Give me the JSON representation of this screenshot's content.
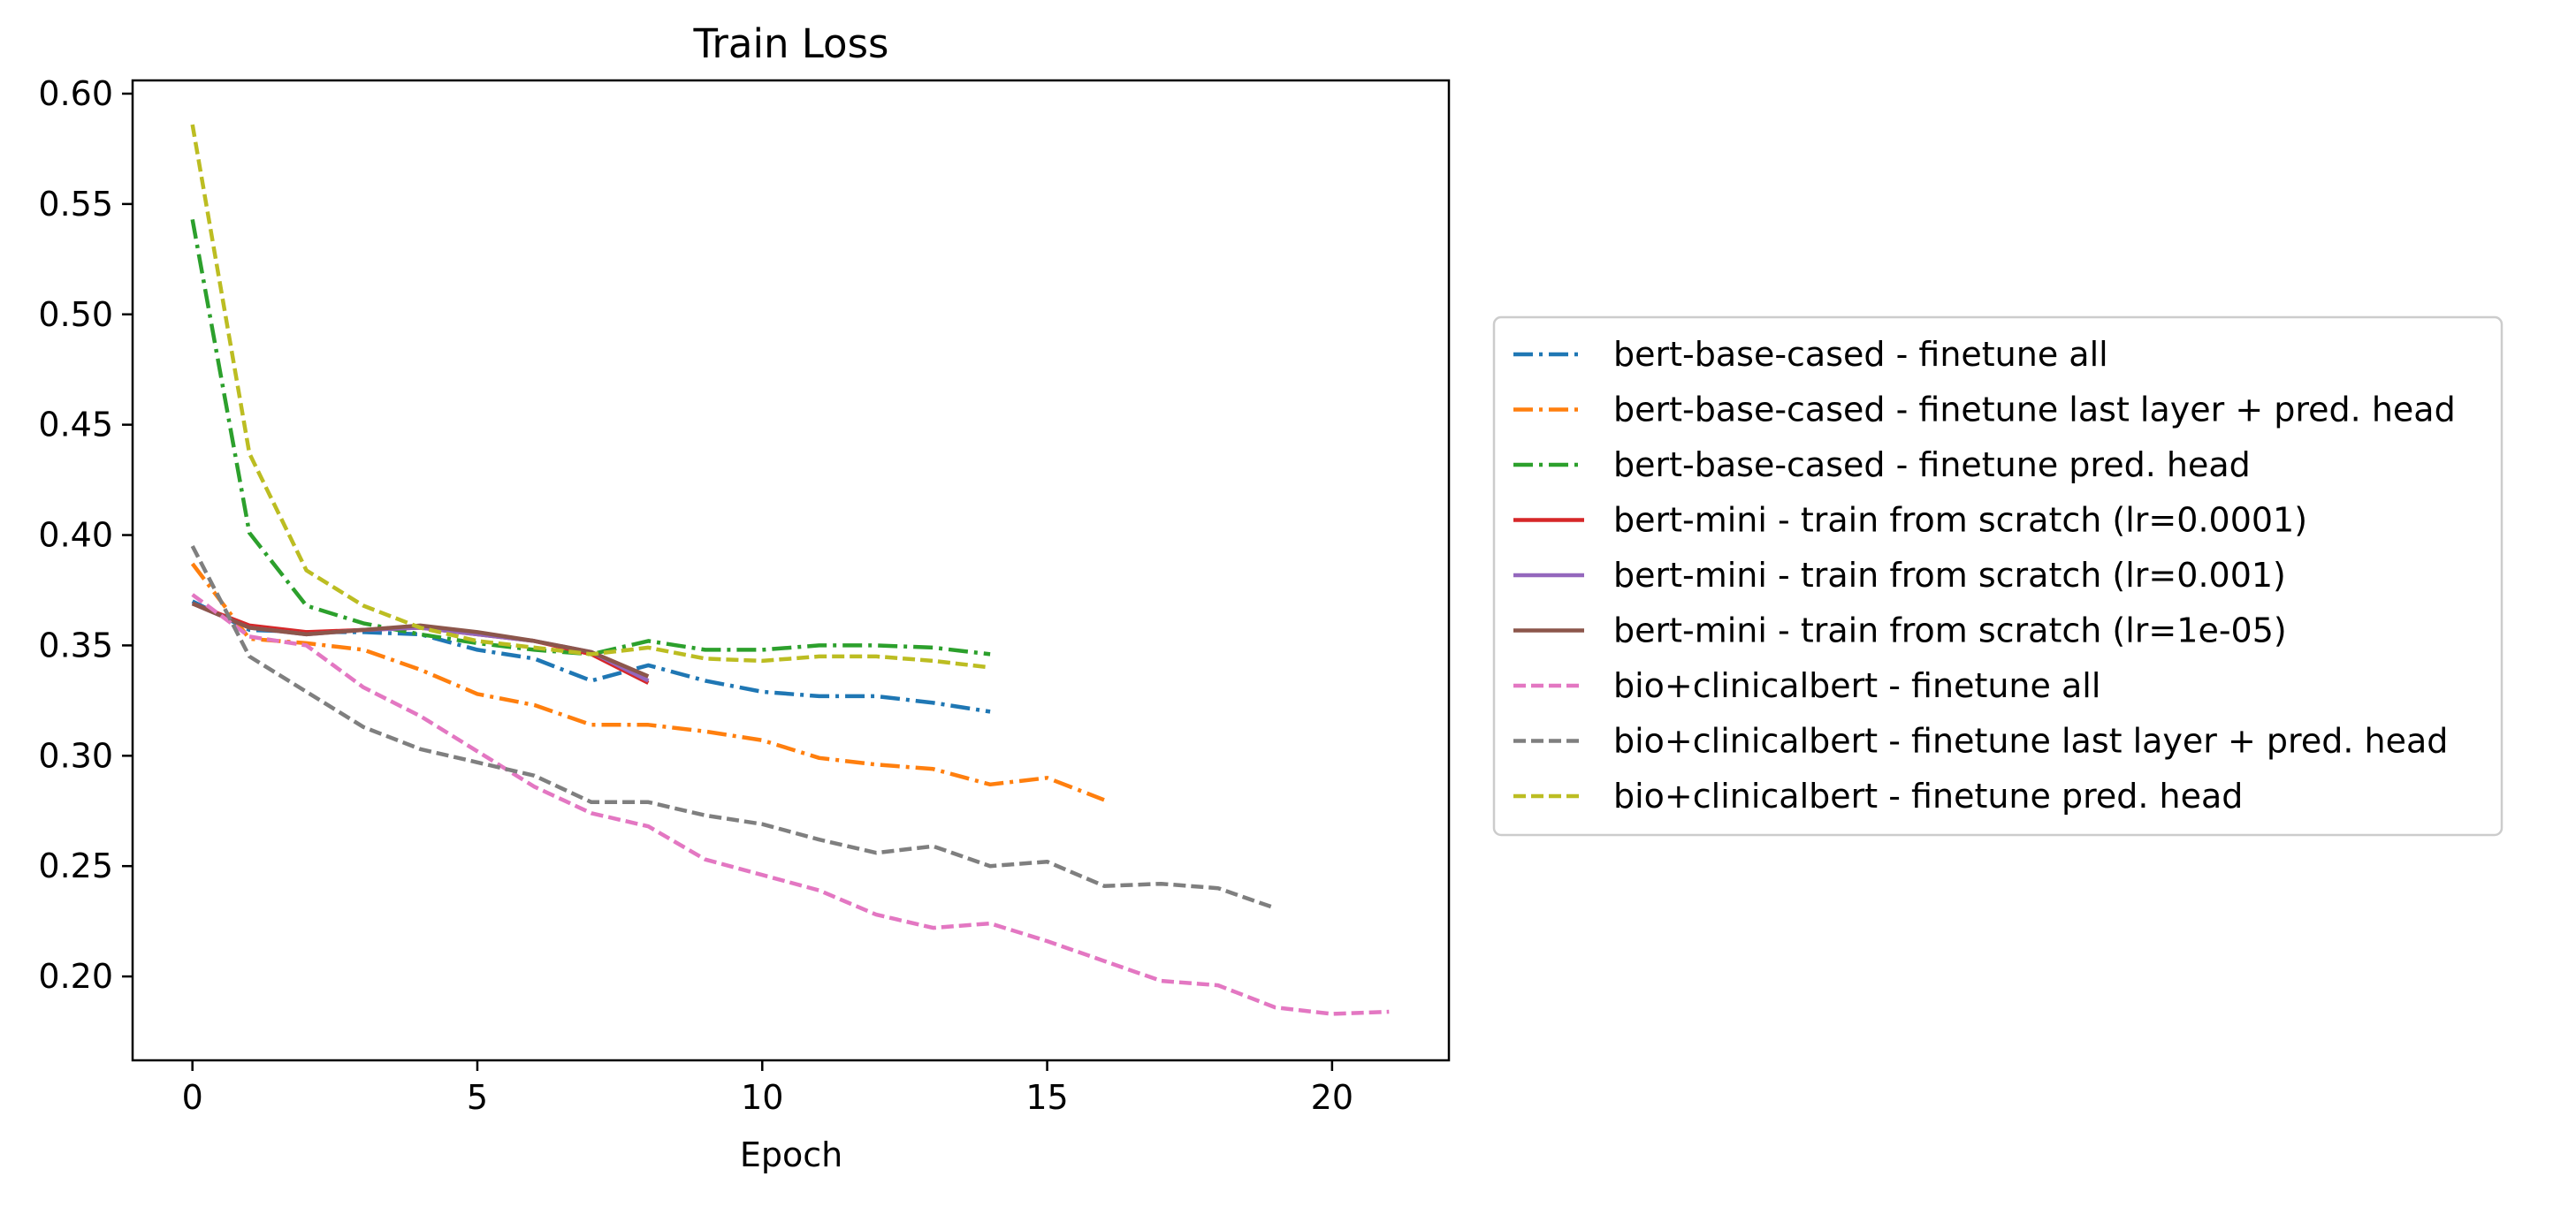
{
  "chart_data": {
    "type": "line",
    "title": "Train Loss",
    "xlabel": "Epoch",
    "ylabel": "",
    "xlim": [
      -1.05,
      22.05
    ],
    "ylim": [
      0.162,
      0.606
    ],
    "xticks": [
      0,
      5,
      10,
      15,
      20
    ],
    "yticks": [
      0.2,
      0.25,
      0.3,
      0.35,
      0.4,
      0.45,
      0.5,
      0.55,
      0.6
    ],
    "grid": false,
    "legend_position": "outside-right",
    "series": [
      {
        "name": "bert-base-cased - finetune all",
        "color": "#1f77b4",
        "dash": "dashdot",
        "x": [
          0,
          1,
          2,
          3,
          4,
          5,
          6,
          7,
          8,
          9,
          10,
          11,
          12,
          13,
          14
        ],
        "values": [
          0.37,
          0.357,
          0.356,
          0.356,
          0.355,
          0.348,
          0.344,
          0.334,
          0.341,
          0.334,
          0.329,
          0.327,
          0.327,
          0.324,
          0.32
        ]
      },
      {
        "name": "bert-base-cased - finetune last layer + pred. head",
        "color": "#ff7f0e",
        "dash": "dashdot",
        "x": [
          0,
          1,
          2,
          3,
          4,
          5,
          6,
          7,
          8,
          9,
          10,
          11,
          12,
          13,
          14,
          15,
          16
        ],
        "values": [
          0.387,
          0.353,
          0.351,
          0.348,
          0.339,
          0.328,
          0.323,
          0.314,
          0.314,
          0.311,
          0.307,
          0.299,
          0.296,
          0.294,
          0.287,
          0.29,
          0.28
        ]
      },
      {
        "name": "bert-base-cased - finetune pred. head",
        "color": "#2ca02c",
        "dash": "dashdot",
        "x": [
          0,
          1,
          2,
          3,
          4,
          5,
          6,
          7,
          8,
          9,
          10,
          11,
          12,
          13,
          14
        ],
        "values": [
          0.543,
          0.401,
          0.368,
          0.36,
          0.355,
          0.351,
          0.348,
          0.346,
          0.352,
          0.348,
          0.348,
          0.35,
          0.35,
          0.349,
          0.346
        ]
      },
      {
        "name": "bert-mini - train from scratch (lr=0.0001)",
        "color": "#d62728",
        "dash": "solid",
        "x": [
          0,
          1,
          2,
          3,
          4,
          5,
          6,
          7,
          8
        ],
        "values": [
          0.369,
          0.359,
          0.356,
          0.357,
          0.358,
          0.355,
          0.352,
          0.346,
          0.333
        ]
      },
      {
        "name": "bert-mini - train from scratch (lr=0.001)",
        "color": "#9467bd",
        "dash": "solid",
        "x": [
          0,
          1,
          2,
          3,
          4,
          5,
          6,
          7,
          8
        ],
        "values": [
          0.369,
          0.358,
          0.355,
          0.357,
          0.358,
          0.355,
          0.352,
          0.347,
          0.334
        ]
      },
      {
        "name": "bert-mini - train from scratch (lr=1e-05)",
        "color": "#8c564b",
        "dash": "solid",
        "x": [
          0,
          1,
          2,
          3,
          4,
          5,
          6,
          7,
          8
        ],
        "values": [
          0.369,
          0.358,
          0.355,
          0.357,
          0.359,
          0.356,
          0.352,
          0.347,
          0.336
        ]
      },
      {
        "name": "bio+clinicalbert - finetune all",
        "color": "#e377c2",
        "dash": "dashed",
        "x": [
          0,
          1,
          2,
          3,
          4,
          5,
          6,
          7,
          8,
          9,
          10,
          11,
          12,
          13,
          14,
          15,
          16,
          17,
          18,
          19,
          20,
          21
        ],
        "values": [
          0.373,
          0.354,
          0.35,
          0.331,
          0.318,
          0.302,
          0.286,
          0.274,
          0.268,
          0.253,
          0.246,
          0.239,
          0.228,
          0.222,
          0.224,
          0.216,
          0.207,
          0.198,
          0.196,
          0.186,
          0.183,
          0.184
        ]
      },
      {
        "name": "bio+clinicalbert - finetune last layer + pred. head",
        "color": "#7f7f7f",
        "dash": "dashed",
        "x": [
          0,
          1,
          2,
          3,
          4,
          5,
          6,
          7,
          8,
          9,
          10,
          11,
          12,
          13,
          14,
          15,
          16,
          17,
          18,
          19
        ],
        "values": [
          0.395,
          0.345,
          0.329,
          0.313,
          0.303,
          0.297,
          0.291,
          0.279,
          0.279,
          0.273,
          0.269,
          0.262,
          0.256,
          0.259,
          0.25,
          0.252,
          0.241,
          0.242,
          0.24,
          0.231
        ]
      },
      {
        "name": "bio+clinicalbert - finetune pred. head",
        "color": "#bcbd22",
        "dash": "dashed",
        "x": [
          0,
          1,
          2,
          3,
          4,
          5,
          6,
          7,
          8,
          9,
          10,
          11,
          12,
          13,
          14
        ],
        "values": [
          0.586,
          0.437,
          0.384,
          0.368,
          0.358,
          0.352,
          0.349,
          0.346,
          0.349,
          0.344,
          0.343,
          0.345,
          0.345,
          0.343,
          0.34
        ]
      }
    ]
  }
}
